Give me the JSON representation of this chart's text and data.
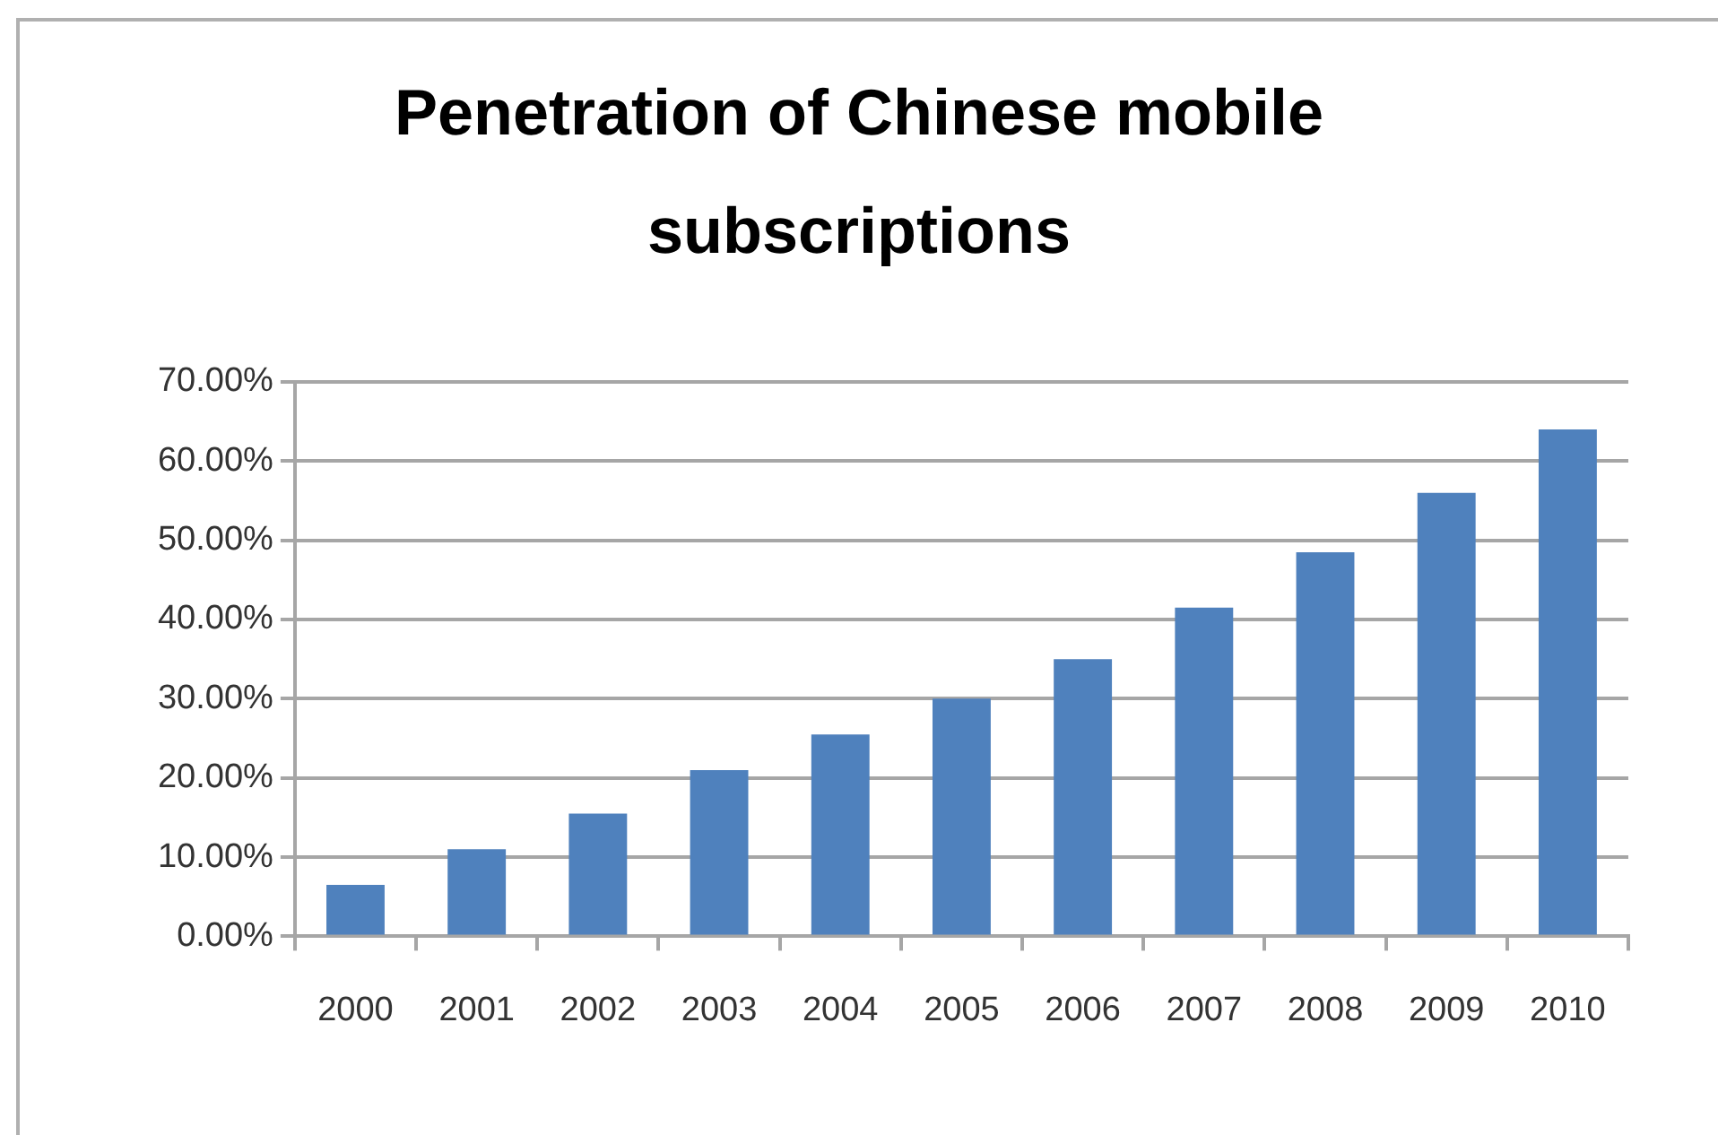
{
  "chart_data": {
    "type": "bar",
    "title": "Penetration of Chinese mobile subscriptions",
    "categories": [
      "2000",
      "2001",
      "2002",
      "2003",
      "2004",
      "2005",
      "2006",
      "2007",
      "2008",
      "2009",
      "2010"
    ],
    "values": [
      6.5,
      11,
      15.5,
      21,
      25.5,
      30,
      35,
      41.5,
      48.5,
      56,
      64
    ],
    "color": "#4f81bd",
    "ylim": [
      0,
      70
    ],
    "yticks": [
      {
        "value": 0,
        "label": "0.00%"
      },
      {
        "value": 10,
        "label": "10.00%"
      },
      {
        "value": 20,
        "label": "20.00%"
      },
      {
        "value": 30,
        "label": "30.00%"
      },
      {
        "value": 40,
        "label": "40.00%"
      },
      {
        "value": 50,
        "label": "50.00%"
      },
      {
        "value": 60,
        "label": "60.00%"
      },
      {
        "value": 70,
        "label": "70.00%"
      }
    ],
    "grid": "y"
  }
}
